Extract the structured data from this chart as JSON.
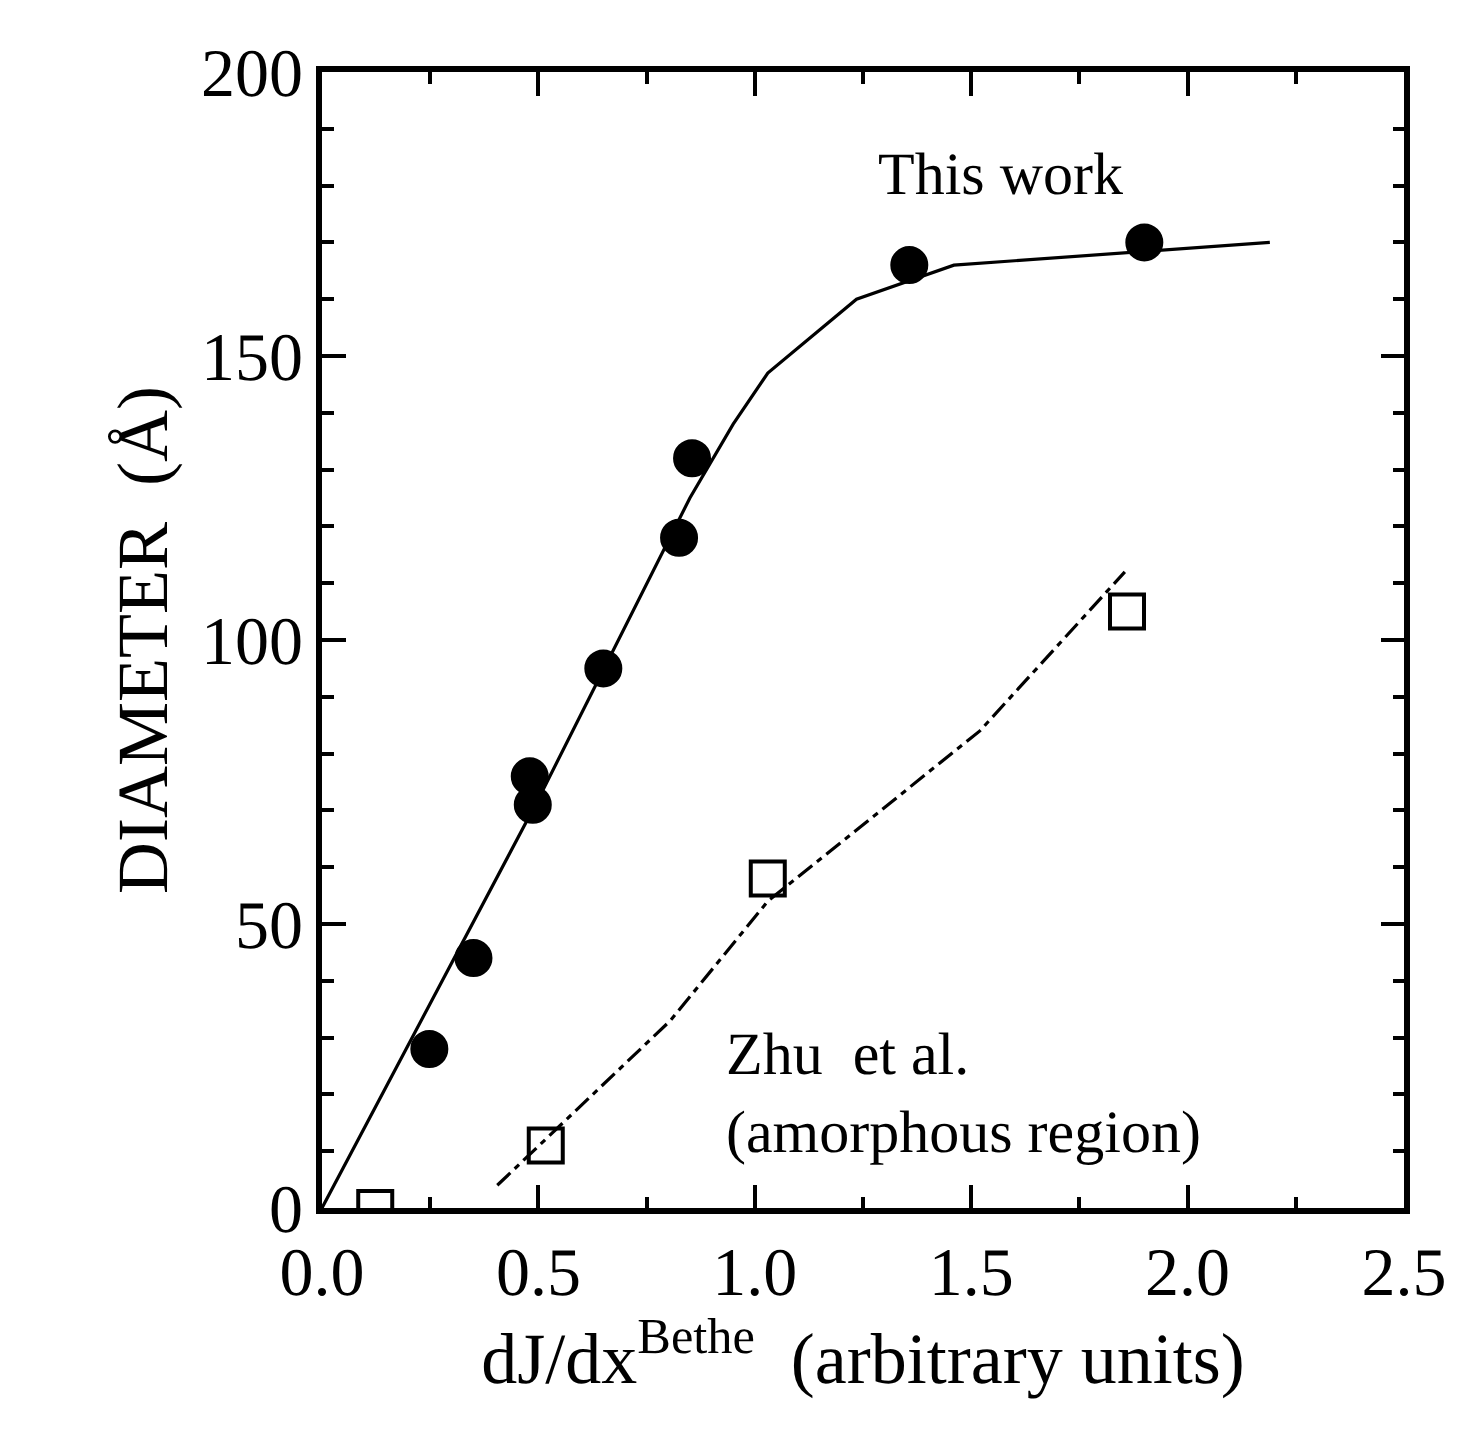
{
  "chart_data": {
    "type": "scatter",
    "xlabel": "dJ/dx$^{Bethe}$  (arbitrary units)",
    "ylabel": "DIAMETER  (Å)",
    "xlim": [
      0,
      2.5
    ],
    "xticks": [
      {
        "value": 0,
        "label": "0.0"
      },
      0.5,
      {
        "value": 1,
        "label": "1.0"
      },
      1.5,
      {
        "value": 2,
        "label": "2.0"
      },
      2.5
    ],
    "ylim": [
      0,
      200
    ],
    "yticks": [
      0,
      50,
      100,
      150,
      200
    ],
    "grid": false,
    "legend": false,
    "series": [
      {
        "marker": "circle",
        "color": "#000000",
        "x": [
          0.248,
          0.35,
          0.48,
          0.487,
          0.65,
          0.825,
          0.855,
          1.357,
          1.9
        ],
        "values": [
          28,
          44,
          76,
          71,
          95,
          118,
          132,
          166,
          170
        ]
      },
      {
        "marker": "square",
        "color": "#000000",
        "x": [
          0.123,
          0.517,
          1.03,
          1.86
        ],
        "values": [
          0,
          11,
          58,
          105
        ]
      },
      {
        "type": "line",
        "line_style": "solid",
        "color": "#000000",
        "x": [
          0,
          0.5,
          0.85,
          0.95,
          1.03,
          1.235,
          1.46,
          2.19
        ],
        "values": [
          0,
          72,
          125,
          138,
          147,
          160,
          166,
          170
        ]
      },
      {
        "type": "line",
        "line_style": "dashed",
        "color": "#000000",
        "x": [
          0.405,
          0.805,
          1.03,
          1.52,
          1.855
        ],
        "values": [
          4,
          33,
          54,
          84,
          112
        ]
      }
    ],
    "annotations": [
      "This work",
      "Zhu  et al.\n(amorphous region)"
    ]
  }
}
